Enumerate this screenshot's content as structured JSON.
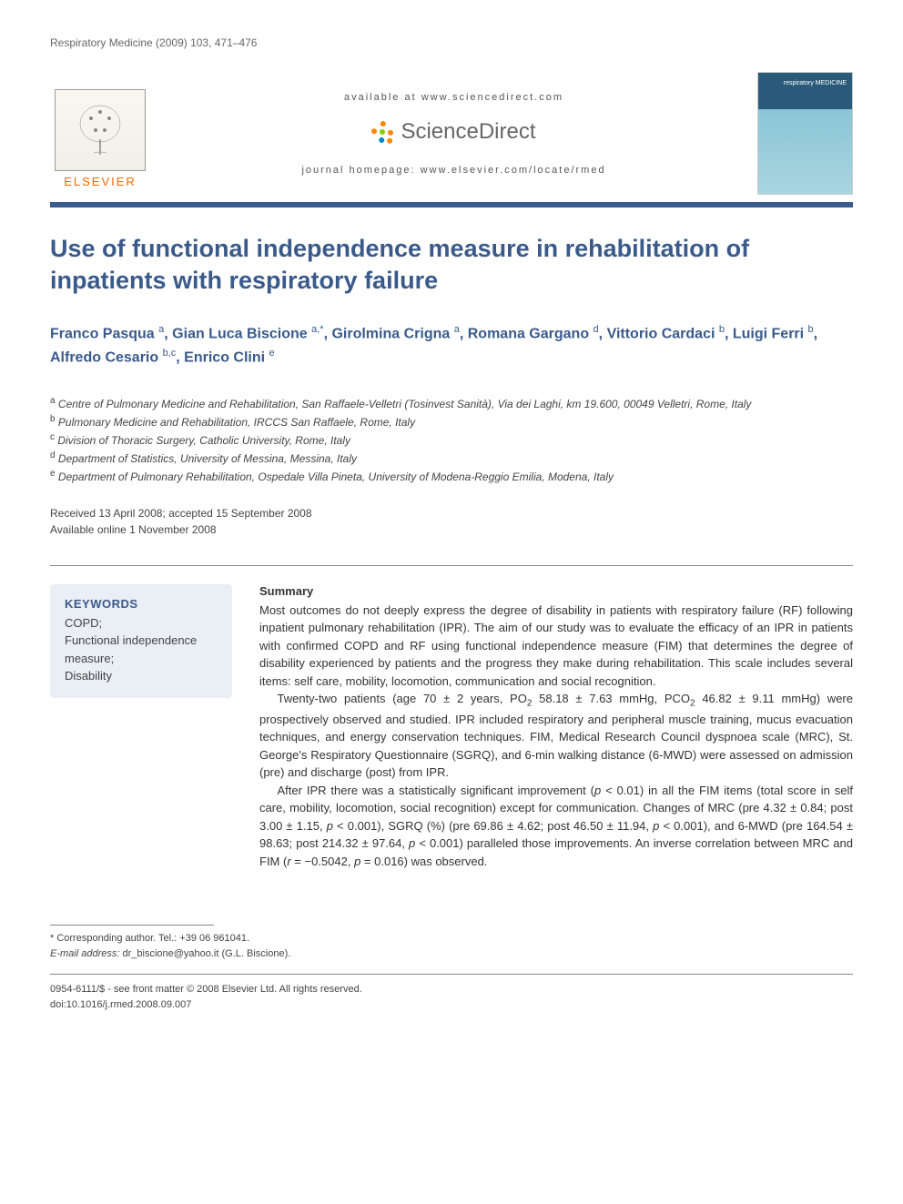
{
  "journal_ref": "Respiratory Medicine (2009) 103, 471–476",
  "header": {
    "available_at": "available at www.sciencedirect.com",
    "sd_brand": "ScienceDirect",
    "homepage_label": "journal homepage: www.elsevier.com/locate/rmed",
    "publisher": "ELSEVIER",
    "cover_label": "respiratory MEDICINE"
  },
  "title": "Use of functional independence measure in rehabilitation of inpatients with respiratory failure",
  "authors_html": "Franco Pasqua <sup>a</sup>, Gian Luca Biscione <sup>a,*</sup>, Girolmina Crigna <sup>a</sup>, Romana Gargano <sup>d</sup>, Vittorio Cardaci <sup>b</sup>, Luigi Ferri <sup>b</sup>, Alfredo Cesario <sup>b,c</sup>, Enrico Clini <sup>e</sup>",
  "affiliations": [
    {
      "sup": "a",
      "text": "Centre of Pulmonary Medicine and Rehabilitation, San Raffaele-Velletri (Tosinvest Sanità), Via dei Laghi, km 19.600, 00049 Velletri, Rome, Italy"
    },
    {
      "sup": "b",
      "text": "Pulmonary Medicine and Rehabilitation, IRCCS San Raffaele, Rome, Italy"
    },
    {
      "sup": "c",
      "text": "Division of Thoracic Surgery, Catholic University, Rome, Italy"
    },
    {
      "sup": "d",
      "text": "Department of Statistics, University of Messina, Messina, Italy"
    },
    {
      "sup": "e",
      "text": "Department of Pulmonary Rehabilitation, Ospedale Villa Pineta, University of Modena-Reggio Emilia, Modena, Italy"
    }
  ],
  "dates": {
    "received": "Received 13 April 2008; accepted 15 September 2008",
    "online": "Available online 1 November 2008"
  },
  "keywords": {
    "heading": "KEYWORDS",
    "items": "COPD;\nFunctional independence measure;\nDisability"
  },
  "summary": {
    "heading": "Summary",
    "p1": "Most outcomes do not deeply express the degree of disability in patients with respiratory failure (RF) following inpatient pulmonary rehabilitation (IPR). The aim of our study was to evaluate the efficacy of an IPR in patients with confirmed COPD and RF using functional independence measure (FIM) that determines the degree of disability experienced by patients and the progress they make during rehabilitation. This scale includes several items: self care, mobility, locomotion, communication and social recognition.",
    "p2_html": "Twenty-two patients (age 70 ± 2 years, PO<sub>2</sub> 58.18 ± 7.63 mmHg, PCO<sub>2</sub> 46.82 ± 9.11 mmHg) were prospectively observed and studied. IPR included respiratory and peripheral muscle training, mucus evacuation techniques, and energy conservation techniques. FIM, Medical Research Council dyspnoea scale (MRC), St. George's Respiratory Questionnaire (SGRQ), and 6-min walking distance (6-MWD) were assessed on admission (pre) and discharge (post) from IPR.",
    "p3_html": "After IPR there was a statistically significant improvement (<span class=\"ital\">p</span> < 0.01) in all the FIM items (total score in self care, mobility, locomotion, social recognition) except for communication. Changes of MRC (pre 4.32 ± 0.84; post 3.00 ± 1.15, <span class=\"ital\">p</span> < 0.001), SGRQ (%) (pre 69.86 ± 4.62; post 46.50 ± 11.94, <span class=\"ital\">p</span> < 0.001), and 6-MWD (pre 164.54 ± 98.63; post 214.32 ± 97.64, <span class=\"ital\">p</span> < 0.001) paralleled those improvements. An inverse correlation between MRC and FIM (<span class=\"ital\">r</span> = −0.5042, <span class=\"ital\">p</span> = 0.016) was observed."
  },
  "footer": {
    "corresponding": "* Corresponding author. Tel.: +39 06 961041.",
    "email_label": "E-mail address:",
    "email": "dr_biscione@yahoo.it",
    "email_author": "(G.L. Biscione).",
    "copyright": "0954-6111/$ - see front matter © 2008 Elsevier Ltd. All rights reserved.",
    "doi": "doi:10.1016/j.rmed.2008.09.007"
  },
  "colors": {
    "heading_blue": "#3a5a8a",
    "rule_blue": "#3a5a8a",
    "keywords_bg": "#eaeef5",
    "elsevier_orange": "#ff6600"
  }
}
